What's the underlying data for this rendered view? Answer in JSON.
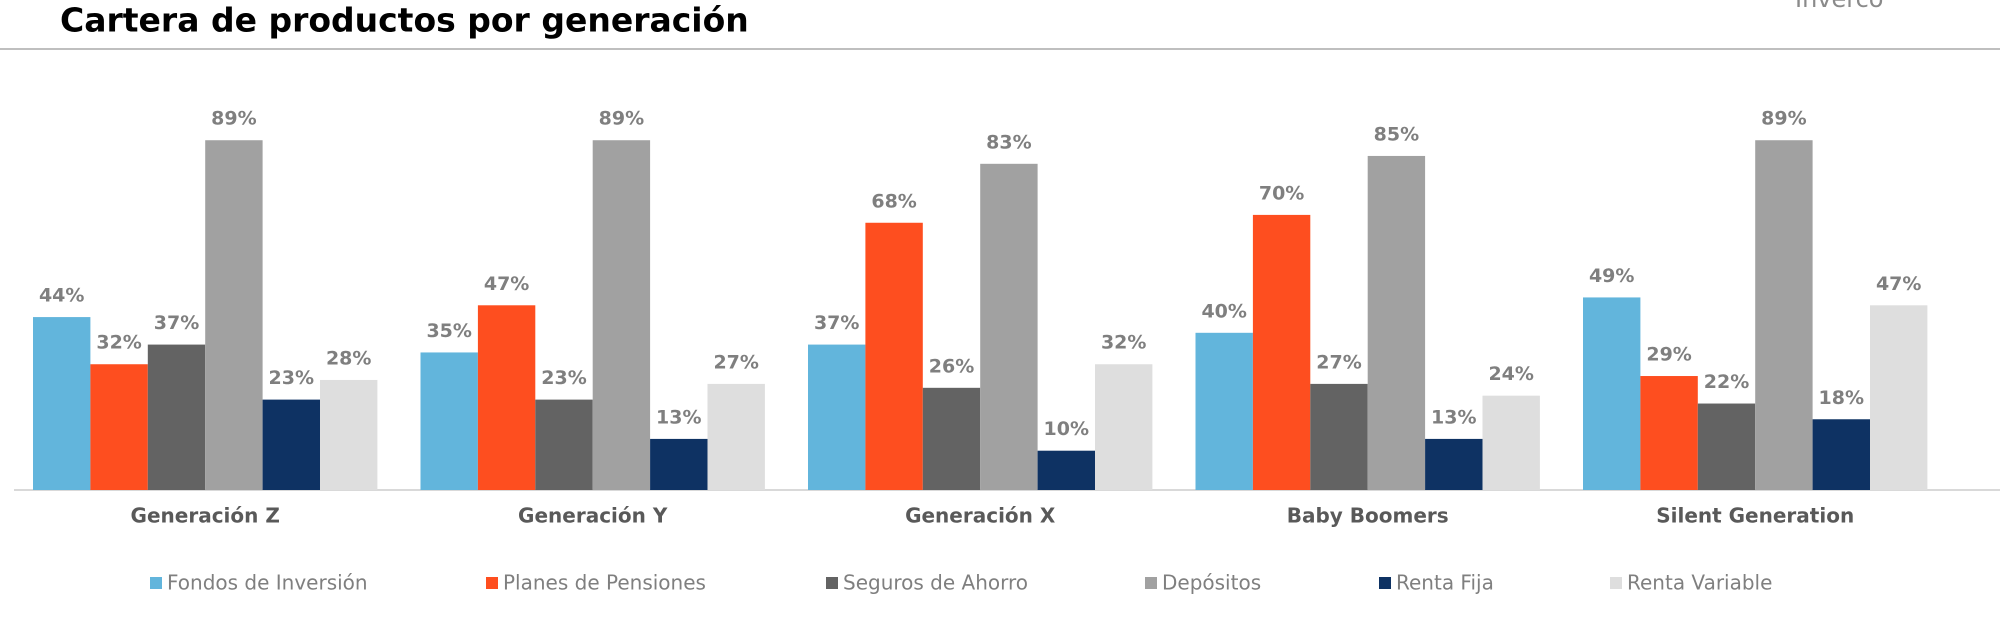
{
  "brand": "Inverco",
  "chart_data": {
    "type": "bar",
    "title": "Cartera de productos por generación",
    "categories": [
      "Generación Z",
      "Generación Y",
      "Generación X",
      "Baby Boomers",
      "Silent Generation"
    ],
    "series": [
      {
        "name": "Fondos de Inversión",
        "color": "#62b5dc",
        "values": [
          44,
          35,
          37,
          40,
          49
        ],
        "value_labels": [
          "44%",
          "35%",
          "37%",
          "40%",
          "49%"
        ]
      },
      {
        "name": "Planes de Pensiones",
        "color": "#fe4e1f",
        "values": [
          32,
          47,
          68,
          70,
          29
        ],
        "value_labels": [
          "32%",
          "47%",
          "68%",
          "70%",
          "29%"
        ]
      },
      {
        "name": "Seguros de Ahorro",
        "color": "#636363",
        "values": [
          37,
          23,
          26,
          27,
          22
        ],
        "value_labels": [
          "37%",
          "23%",
          "26%",
          "27%",
          "22%"
        ]
      },
      {
        "name": "Depósitos",
        "color": "#a1a1a1",
        "values": [
          89,
          89,
          83,
          85,
          89
        ],
        "value_labels": [
          "89%",
          "89%",
          "83%",
          "85%",
          "89%"
        ]
      },
      {
        "name": "Renta Fija",
        "color": "#0e3263",
        "values": [
          23,
          13,
          10,
          13,
          18
        ],
        "value_labels": [
          "23%",
          "13%",
          "10%",
          "13%",
          "18%"
        ]
      },
      {
        "name": "Renta Variable",
        "color": "#dedede",
        "values": [
          28,
          27,
          32,
          24,
          47
        ],
        "value_labels": [
          "28%",
          "27%",
          "32%",
          "24%",
          "47%"
        ]
      }
    ]
  }
}
